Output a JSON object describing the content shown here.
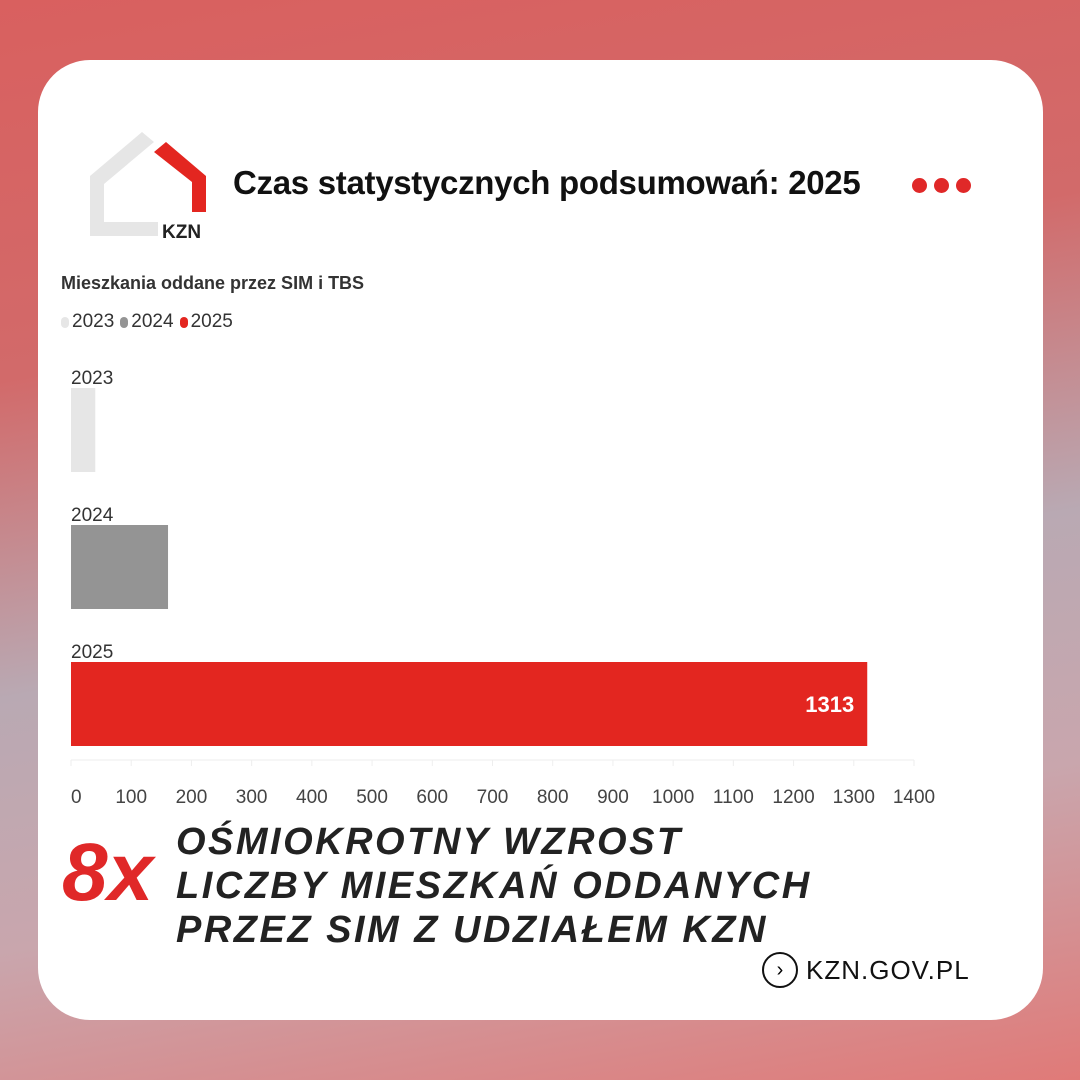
{
  "header": {
    "title": "Czas statystycznych podsumowań: 2025",
    "logo_text": "KZN"
  },
  "colors": {
    "accent": "#e02828",
    "y2023": "#e6e6e6",
    "y2024": "#949494",
    "y2025": "#e32620"
  },
  "chart_data": {
    "type": "bar",
    "orientation": "horizontal",
    "title": "Mieszkania oddane przez SIM i TBS",
    "categories": [
      "2023",
      "2024",
      "2025"
    ],
    "values": [
      40,
      160,
      1313
    ],
    "data_labels": [
      "",
      "",
      "1313"
    ],
    "legend": [
      "2023",
      "2024",
      "2025"
    ],
    "legend_placement": "top-left",
    "xlim": [
      0,
      1400
    ],
    "xticks": [
      "0",
      "100",
      "200",
      "300",
      "400",
      "500",
      "600",
      "700",
      "800",
      "900",
      "1000",
      "1100",
      "1200",
      "1300",
      "1400"
    ],
    "grid": false
  },
  "callout": {
    "multiplier": "8x",
    "lines": [
      "OŚMIOKROTNY WZROST",
      "LICZBY MIESZKAŃ ODDANYCH",
      "PRZEZ SIM Z UDZIAŁEM KZN"
    ]
  },
  "footer": {
    "link": "KZN.GOV.PL",
    "icon": "chevron-right-circle-icon"
  }
}
